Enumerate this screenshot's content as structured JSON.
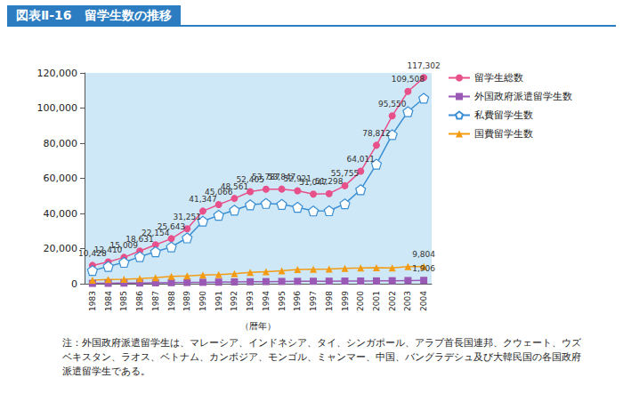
{
  "chart_data": {
    "type": "line",
    "title": "図表Ⅱ-16　留学生数の推移",
    "x_label": "（暦年）",
    "annotations": [
      "注：外国政府派遣留学生は、マレーシア、インドネシア、タイ、シンガポール、アラブ首長国連邦、クウェート、ウズベキスタン、ラオス、ベトナム、カンボジア、モンゴル、ミャンマー、中国、バングラデシュ及び大韓民国の各国政府派遣留学生である。"
    ],
    "categories": [
      "1983",
      "1984",
      "1985",
      "1986",
      "1987",
      "1988",
      "1989",
      "1990",
      "1991",
      "1992",
      "1993",
      "1994",
      "1995",
      "1996",
      "1997",
      "1998",
      "1999",
      "2000",
      "2001",
      "2002",
      "2003",
      "2004"
    ],
    "series": [
      {
        "name": "留学生総数",
        "color": "#e8508a",
        "marker": "circle",
        "values": [
          10428,
          12410,
          15009,
          18631,
          22154,
          25643,
          31251,
          41347,
          45066,
          48561,
          52405,
          53787,
          53847,
          52921,
          51047,
          51298,
          55755,
          64011,
          78812,
          95550,
          109508,
          117302
        ],
        "value_labels": [
          "10,428",
          "12,410",
          "15,009",
          "18,631",
          "22,154",
          "25,643",
          "31,251",
          "41,347",
          "45,066",
          "48,561",
          "52,405",
          "53,787",
          "53,847",
          "52,921",
          "51,047",
          "51,298",
          "55,755",
          "64,011",
          "78,812",
          "95,550",
          "109,508",
          "117,302"
        ]
      },
      {
        "name": "外国政府派遣留学生数",
        "color": "#9b59b6",
        "marker": "square",
        "values": [
          200,
          250,
          350,
          400,
          500,
          600,
          700,
          800,
          900,
          1000,
          1100,
          1200,
          1300,
          1350,
          1400,
          1450,
          1500,
          1550,
          1600,
          1700,
          1800,
          1906
        ],
        "value_labels": [
          null,
          null,
          null,
          null,
          null,
          null,
          null,
          null,
          null,
          null,
          null,
          null,
          null,
          null,
          null,
          null,
          null,
          null,
          null,
          null,
          null,
          "1,906"
        ]
      },
      {
        "name": "私費留学生数",
        "color": "#3a8fd4",
        "marker": "pentagon",
        "values": [
          7500,
          9815,
          12157,
          15376,
          18196,
          20925,
          26086,
          35586,
          38947,
          41862,
          44897,
          45707,
          45176,
          43520,
          41397,
          41525,
          45481,
          53531,
          68039,
          84841,
          97962,
          105591
        ]
      },
      {
        "name": "国費留学生数",
        "color": "#f39c12",
        "marker": "triangle",
        "values": [
          2082,
          2345,
          2502,
          2855,
          3458,
          4118,
          4465,
          4961,
          5219,
          5699,
          6408,
          6880,
          7371,
          8051,
          8250,
          8323,
          8774,
          8930,
          9173,
          9009,
          9746,
          9804
        ],
        "value_labels": [
          null,
          null,
          null,
          null,
          null,
          null,
          null,
          null,
          null,
          null,
          null,
          null,
          null,
          null,
          null,
          null,
          null,
          null,
          null,
          null,
          null,
          "9,804"
        ]
      }
    ],
    "ylim": [
      0,
      120000
    ],
    "yticks": [
      {
        "value": 0,
        "label": "0"
      },
      {
        "value": 20000,
        "label": "20,000"
      },
      {
        "value": 40000,
        "label": "40,000"
      },
      {
        "value": 60000,
        "label": "60,000"
      },
      {
        "value": 80000,
        "label": "80,000"
      },
      {
        "value": 100000,
        "label": "100,000"
      },
      {
        "value": 120000,
        "label": "120,000"
      }
    ],
    "grid": false,
    "legend": "right",
    "data_labels": true,
    "tick_labels": true
  }
}
